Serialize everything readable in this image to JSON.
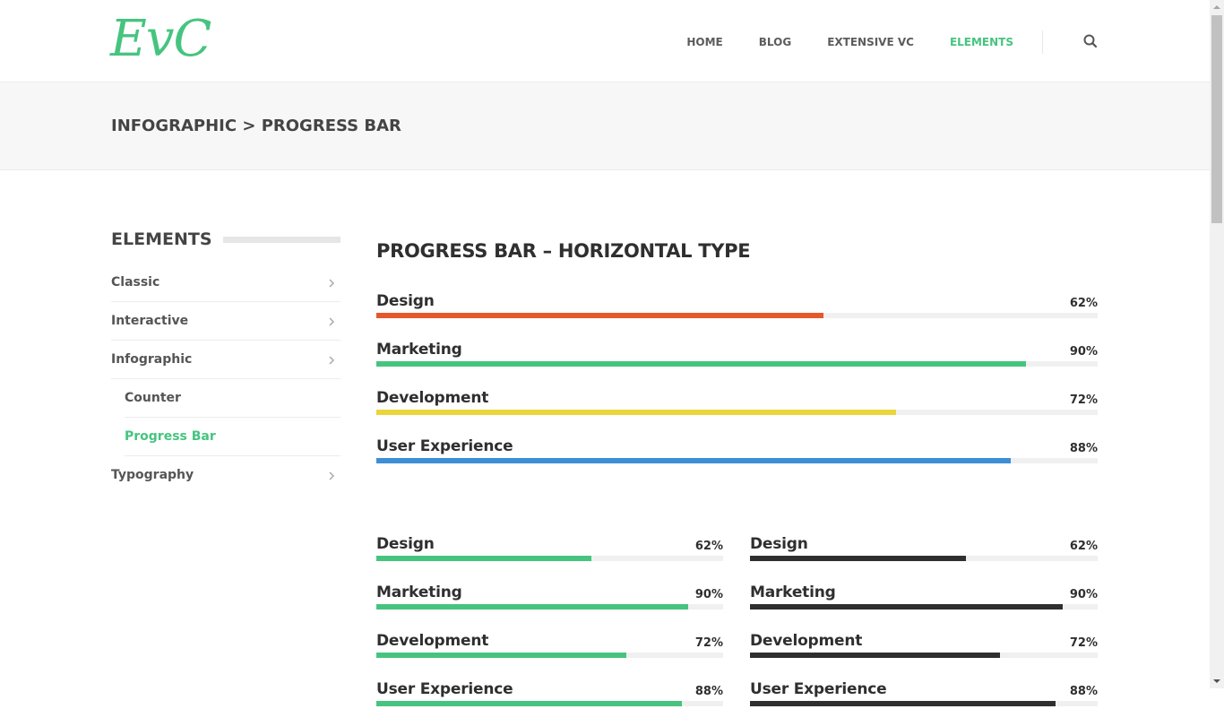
{
  "header": {
    "logo_text": "EvC",
    "nav": [
      "HOME",
      "BLOG",
      "EXTENSIVE VC",
      "ELEMENTS"
    ],
    "active_nav": "ELEMENTS",
    "search_icon": "search-icon"
  },
  "breadcrumb": "INFOGRAPHIC > PROGRESS BAR",
  "sidebar": {
    "title": "ELEMENTS",
    "items": [
      {
        "label": "Classic",
        "has_chevron": true
      },
      {
        "label": "Interactive",
        "has_chevron": true
      },
      {
        "label": "Infographic",
        "has_chevron": true
      },
      {
        "label": "Counter",
        "has_chevron": false,
        "sub": true
      },
      {
        "label": "Progress Bar",
        "has_chevron": false,
        "sub": true,
        "active": true
      },
      {
        "label": "Typography",
        "has_chevron": true
      }
    ]
  },
  "main": {
    "section_title": "PROGRESS BAR – HORIZONTAL TYPE",
    "full_width_bars": [
      {
        "label": "Design",
        "percent": 62,
        "percent_text": "62%",
        "color": "#e5582b"
      },
      {
        "label": "Marketing",
        "percent": 90,
        "percent_text": "90%",
        "color": "#46c47f"
      },
      {
        "label": "Development",
        "percent": 72,
        "percent_text": "72%",
        "color": "#ecd43b"
      },
      {
        "label": "User Experience",
        "percent": 88,
        "percent_text": "88%",
        "color": "#3c8ed6"
      }
    ],
    "left_column_bars": [
      {
        "label": "Design",
        "percent": 62,
        "percent_text": "62%",
        "color": "#46c47f"
      },
      {
        "label": "Marketing",
        "percent": 90,
        "percent_text": "90%",
        "color": "#46c47f"
      },
      {
        "label": "Development",
        "percent": 72,
        "percent_text": "72%",
        "color": "#46c47f"
      },
      {
        "label": "User Experience",
        "percent": 88,
        "percent_text": "88%",
        "color": "#46c47f"
      }
    ],
    "right_column_bars": [
      {
        "label": "Design",
        "percent": 62,
        "percent_text": "62%",
        "color": "#2f2f2f"
      },
      {
        "label": "Marketing",
        "percent": 90,
        "percent_text": "90%",
        "color": "#2f2f2f"
      },
      {
        "label": "Development",
        "percent": 72,
        "percent_text": "72%",
        "color": "#2f2f2f"
      },
      {
        "label": "User Experience",
        "percent": 88,
        "percent_text": "88%",
        "color": "#2f2f2f"
      }
    ]
  },
  "colors": {
    "accent": "#46c47f",
    "text_dark": "#2f2f2f",
    "track": "#f0f0f0"
  }
}
